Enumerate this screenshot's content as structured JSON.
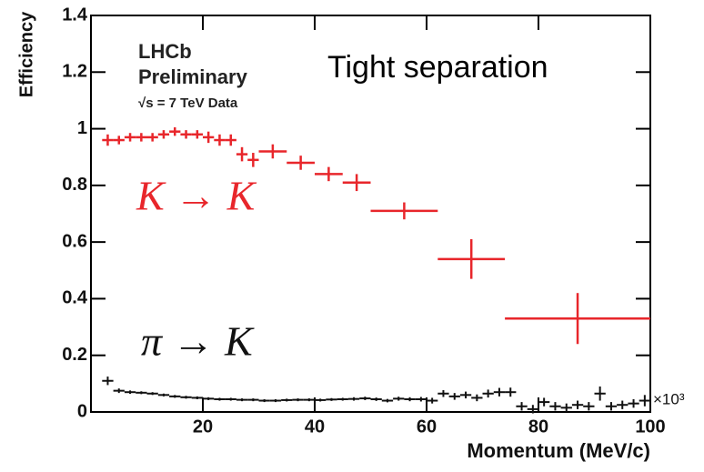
{
  "chart_data": {
    "type": "errorbar",
    "title": "Tight separation",
    "annotations": [
      "LHCb",
      "Preliminary",
      "√s = 7 TeV Data"
    ],
    "x_label": "Momentum (MeV/c)",
    "y_label": "Efficiency",
    "x_scale_label": "×10³",
    "xlim": [
      0,
      100
    ],
    "ylim": [
      0,
      1.4
    ],
    "xticks": [
      20,
      40,
      60,
      80,
      100
    ],
    "yticks": [
      0,
      0.2,
      0.4,
      0.6,
      0.8,
      1,
      1.2,
      1.4
    ],
    "series": [
      {
        "name": "K → K",
        "color": "#e8262b",
        "x": [
          3,
          5,
          7,
          9,
          11,
          13,
          15,
          17,
          19,
          21,
          23,
          25,
          27,
          29,
          32.5,
          37.5,
          42.5,
          47.5,
          56,
          68,
          87
        ],
        "xerr": [
          1,
          1,
          1,
          1,
          1,
          1,
          1,
          1,
          1,
          1,
          1,
          1,
          1,
          1,
          2.5,
          2.5,
          2.5,
          2.5,
          6,
          6,
          13
        ],
        "values": [
          0.96,
          0.96,
          0.97,
          0.97,
          0.97,
          0.98,
          0.99,
          0.98,
          0.98,
          0.97,
          0.96,
          0.96,
          0.91,
          0.89,
          0.92,
          0.88,
          0.84,
          0.81,
          0.71,
          0.54,
          0.33
        ],
        "yerr": [
          0.02,
          0.015,
          0.015,
          0.015,
          0.015,
          0.015,
          0.015,
          0.015,
          0.015,
          0.02,
          0.02,
          0.02,
          0.025,
          0.025,
          0.025,
          0.025,
          0.025,
          0.03,
          0.03,
          0.07,
          0.09
        ]
      },
      {
        "name": "π → K",
        "color": "#111111",
        "x": [
          3,
          5,
          7,
          9,
          11,
          13,
          15,
          17,
          19,
          21,
          23,
          25,
          27,
          29,
          31,
          33,
          35,
          37,
          39,
          41,
          43,
          45,
          47,
          49,
          51,
          53,
          55,
          57,
          59,
          61,
          63,
          65,
          67,
          69,
          71,
          73,
          75,
          77,
          79,
          81,
          83,
          85,
          87,
          89,
          91,
          93,
          95,
          97,
          99
        ],
        "xerr": [
          1,
          1,
          1,
          1,
          1,
          1,
          1,
          1,
          1,
          1,
          1,
          1,
          1,
          1,
          1,
          1,
          1,
          1,
          1,
          1,
          1,
          1,
          1,
          1,
          1,
          1,
          1,
          1,
          1,
          1,
          1,
          1,
          1,
          1,
          1,
          1,
          1,
          1,
          1,
          1,
          1,
          1,
          1,
          1,
          1,
          1,
          1,
          1,
          1
        ],
        "values": [
          0.11,
          0.075,
          0.07,
          0.068,
          0.065,
          0.06,
          0.055,
          0.052,
          0.05,
          0.047,
          0.045,
          0.045,
          0.043,
          0.043,
          0.04,
          0.04,
          0.042,
          0.043,
          0.043,
          0.042,
          0.044,
          0.045,
          0.046,
          0.048,
          0.045,
          0.04,
          0.047,
          0.045,
          0.045,
          0.04,
          0.065,
          0.055,
          0.06,
          0.05,
          0.065,
          0.07,
          0.07,
          0.02,
          0.01,
          0.035,
          0.02,
          0.015,
          0.025,
          0.02,
          0.065,
          0.02,
          0.025,
          0.03,
          0.04
        ],
        "yerr": [
          0.015,
          0.008,
          0.006,
          0.005,
          0.005,
          0.005,
          0.005,
          0.005,
          0.005,
          0.005,
          0.005,
          0.005,
          0.005,
          0.005,
          0.005,
          0.005,
          0.005,
          0.005,
          0.005,
          0.005,
          0.005,
          0.005,
          0.006,
          0.006,
          0.006,
          0.006,
          0.007,
          0.007,
          0.008,
          0.01,
          0.012,
          0.012,
          0.012,
          0.012,
          0.014,
          0.015,
          0.016,
          0.015,
          0.015,
          0.015,
          0.015,
          0.015,
          0.015,
          0.015,
          0.025,
          0.015,
          0.015,
          0.015,
          0.02
        ]
      }
    ]
  }
}
